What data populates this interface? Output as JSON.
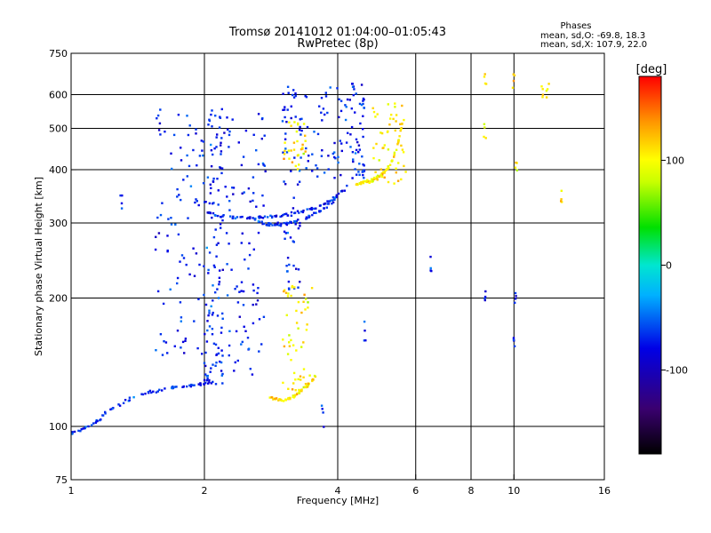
{
  "chart_data": {
    "type": "scatter",
    "title": "Tromsø 20141012 01:04:00–01:05:43",
    "subtitle": "RwPretec (8p)",
    "xlabel": "Frequency [MHz]",
    "ylabel": "Stationary phase Virtual Height [km]",
    "x_scale": "log2",
    "y_scale": "log",
    "xlim": [
      1,
      16
    ],
    "ylim": [
      75,
      750
    ],
    "x_ticks": [
      1,
      2,
      4,
      6,
      8,
      10,
      16
    ],
    "x_tick_labels": [
      "1",
      "2",
      "4",
      "6",
      "8",
      "10",
      "16"
    ],
    "y_ticks": [
      75,
      100,
      200,
      300,
      400,
      500,
      600,
      750
    ],
    "y_tick_labels": [
      "75",
      "100",
      "200",
      "300",
      "400",
      "500",
      "600",
      "750"
    ],
    "x_gridlines": [
      2,
      4,
      6,
      8,
      10
    ],
    "y_gridlines": [
      100,
      200,
      300,
      400,
      500,
      600
    ],
    "grid": true,
    "legend": {
      "title": "Phases",
      "lines": [
        "mean, sd,O: -69.8, 18.3",
        "mean, sd,X: 107.9, 22.0"
      ],
      "placement": "top-right"
    },
    "colorbar": {
      "label": "[deg]",
      "range": [
        -180,
        180
      ],
      "ticks": [
        100,
        0,
        -100
      ],
      "tick_labels": [
        "100",
        "0",
        "-100"
      ]
    },
    "series": [
      {
        "name": "O",
        "phase_mean": -69.8,
        "phase_sd": 18.3,
        "traces": [
          {
            "f": [
              1.0,
              1.05,
              1.1,
              1.15,
              1.2,
              1.3,
              1.4,
              1.5,
              1.6,
              1.7,
              1.8,
              1.9,
              2.0,
              2.1
            ],
            "h": [
              96,
              98,
              100,
              103,
              108,
              113,
              118,
              120,
              122,
              123,
              124,
              125,
              126,
              127
            ]
          },
          {
            "f": [
              2.0,
              2.1,
              2.25,
              2.4,
              2.55,
              2.7,
              2.85,
              3.0,
              3.2,
              3.4,
              3.6,
              3.8,
              4.0,
              4.2
            ],
            "h": [
              320,
              313,
              310,
              309,
              309,
              310,
              311,
              313,
              316,
              320,
              327,
              336,
              348,
              365
            ]
          },
          {
            "f": [
              2.6,
              2.7,
              2.8,
              2.9,
              3.0,
              3.1,
              3.2,
              3.35,
              3.5,
              3.7,
              3.9,
              4.0
            ],
            "h": [
              305,
              300,
              298,
              297,
              298,
              300,
              303,
              307,
              313,
              323,
              337,
              350
            ]
          }
        ],
        "bands": [
          {
            "f": [
              1.55,
              2.75
            ],
            "h": [
              130,
              560
            ]
          },
          {
            "f": [
              2.0,
              2.2
            ],
            "h": [
              125,
              600
            ]
          },
          {
            "f": [
              3.0,
              3.3
            ],
            "h": [
              200,
              640
            ]
          },
          {
            "f": [
              3.3,
              4.6
            ],
            "h": [
              380,
              640
            ]
          },
          {
            "f": [
              4.3,
              4.6
            ],
            "h": [
              380,
              640
            ]
          }
        ],
        "scattered": {
          "f": [
            1.3,
            3.7,
            4.6,
            6.5,
            8.6,
            10.1,
            10.0
          ],
          "h": [
            335,
            106,
            165,
            240,
            195,
            200,
            160
          ]
        }
      },
      {
        "name": "X",
        "phase_mean": 107.9,
        "phase_sd": 22.0,
        "traces": [
          {
            "f": [
              2.8,
              2.9,
              3.0,
              3.1,
              3.2,
              3.3,
              3.4,
              3.5,
              3.6
            ],
            "h": [
              117,
              116,
              115,
              116,
              118,
              121,
              124,
              128,
              133
            ]
          },
          {
            "f": [
              4.4,
              4.5,
              4.6,
              4.7,
              4.8,
              4.9,
              5.0,
              5.1,
              5.2,
              5.3,
              5.4,
              5.5,
              5.6
            ],
            "h": [
              370,
              371,
              373,
              375,
              378,
              382,
              388,
              395,
              405,
              420,
              440,
              470,
              520
            ]
          }
        ],
        "bands": [
          {
            "f": [
              3.0,
              3.5
            ],
            "h": [
              115,
              220
            ]
          },
          {
            "f": [
              3.0,
              3.4
            ],
            "h": [
              400,
              520
            ]
          },
          {
            "f": [
              4.8,
              5.7
            ],
            "h": [
              370,
              600
            ]
          }
        ],
        "scattered": {
          "f": [
            8.6,
            8.6,
            10.0,
            10.1,
            11.6,
            11.9,
            12.8
          ],
          "h": [
            500,
            640,
            640,
            400,
            600,
            590,
            340
          ]
        }
      }
    ]
  }
}
